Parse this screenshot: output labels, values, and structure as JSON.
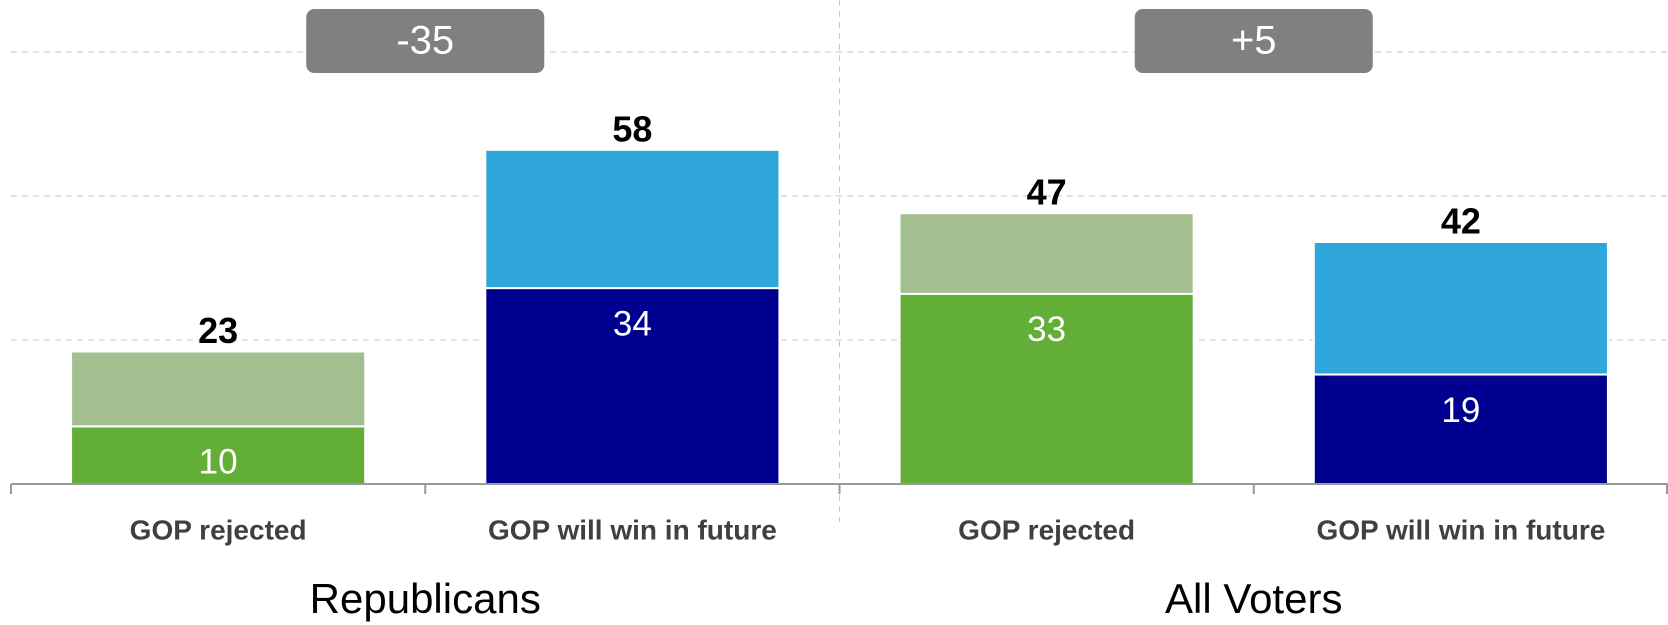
{
  "chart_data": {
    "type": "stacked_bar",
    "groups": [
      {
        "name": "Republicans",
        "annotation": "-35",
        "categories": [
          "GOP rejected",
          "GOP will win in future"
        ]
      },
      {
        "name": "All Voters",
        "annotation": "+5",
        "categories": [
          "GOP rejected",
          "GOP will win in future"
        ]
      }
    ],
    "series": [
      {
        "values": [
          10,
          34,
          33,
          19
        ],
        "colors": [
          "#62ae37",
          "#000090",
          "#62ae37",
          "#000090"
        ]
      },
      {
        "values": [
          13,
          24,
          14,
          23
        ],
        "colors": [
          "#a3bf8f",
          "#2ea6dc",
          "#a3bf8f",
          "#2ea6dc"
        ]
      }
    ],
    "totals": [
      23,
      58,
      47,
      42
    ],
    "ylim": [
      0,
      84
    ],
    "yticks": [
      0,
      25,
      50,
      75
    ],
    "grid": true
  }
}
